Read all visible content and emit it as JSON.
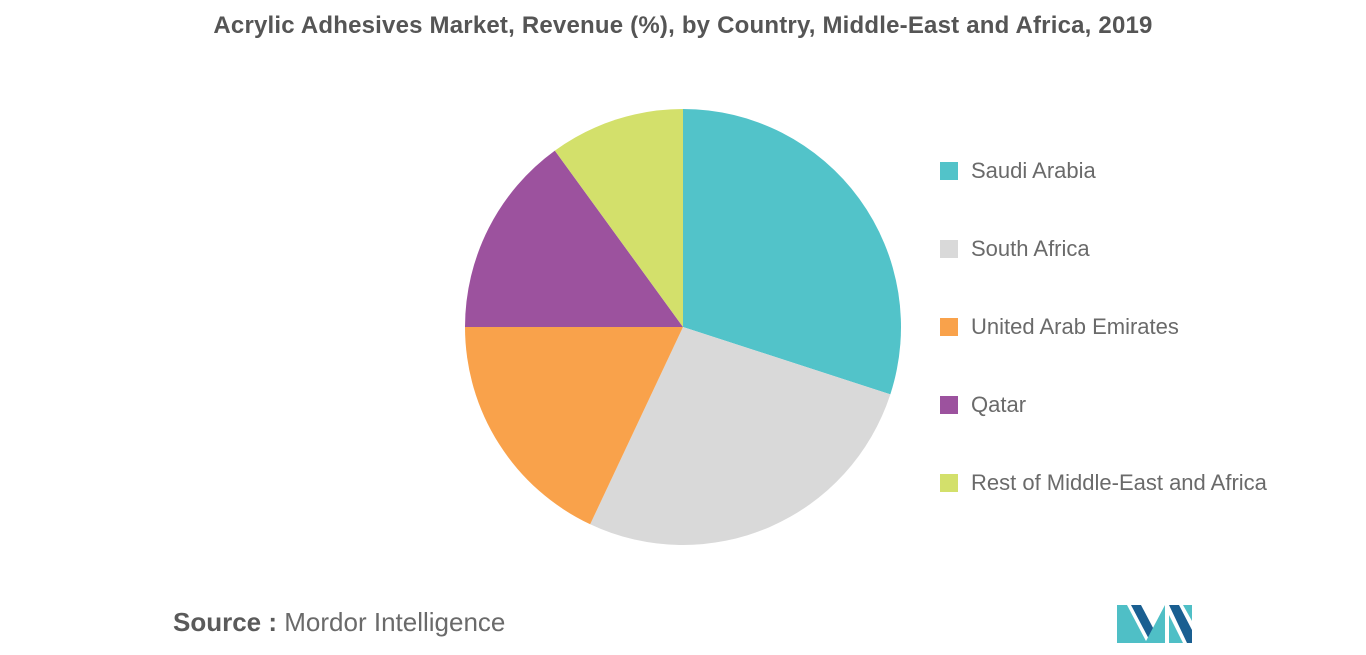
{
  "chart_data": {
    "type": "pie",
    "title": "Acrylic Adhesives Market, Revenue (%), by Country, Middle-East and Africa, 2019",
    "legend_position": "right",
    "slices": [
      {
        "label": "Saudi Arabia",
        "value": 30,
        "color": "#52c3c9"
      },
      {
        "label": "South Africa",
        "value": 27,
        "color": "#d9d9d9"
      },
      {
        "label": "United Arab Emirates",
        "value": 18,
        "color": "#f9a24b"
      },
      {
        "label": "Qatar",
        "value": 15,
        "color": "#9c529e"
      },
      {
        "label": "Rest of Middle-East and Africa",
        "value": 10,
        "color": "#d3e06b"
      }
    ]
  },
  "source": {
    "label": "Source :",
    "text": "Mordor Intelligence"
  },
  "logo": {
    "name": "mordor-intelligence-logo",
    "colors": [
      "#1a5f91",
      "#4fbfc6"
    ]
  }
}
